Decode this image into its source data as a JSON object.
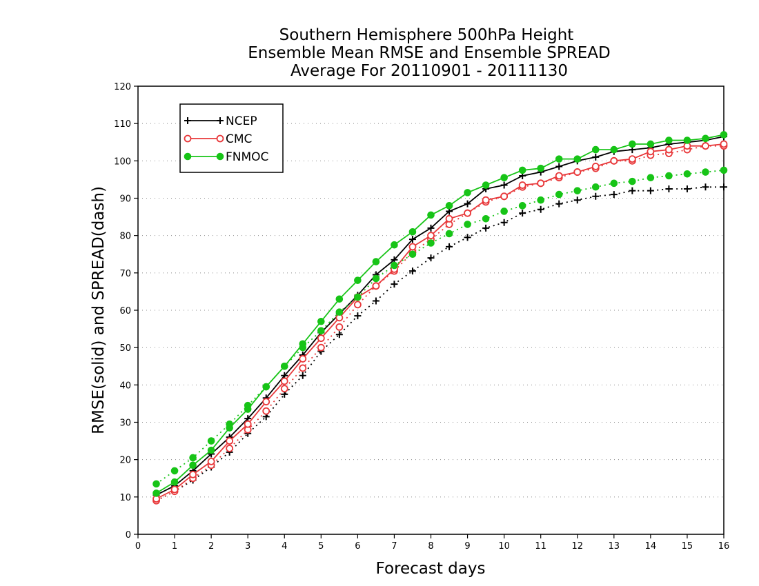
{
  "chart_data": {
    "type": "line",
    "title": [
      "Southern Hemisphere 500hPa Height",
      "Ensemble Mean RMSE and Ensemble SPREAD",
      "Average For 20110901 - 20111130"
    ],
    "xlabel": "Forecast days",
    "ylabel": "RMSE(solid) and SPREAD(dash)",
    "xlim": [
      0,
      16
    ],
    "ylim": [
      0,
      120
    ],
    "x_ticks": [
      "0",
      "1",
      "2",
      "3",
      "4",
      "5",
      "6",
      "7",
      "8",
      "9",
      "10",
      "11",
      "12",
      "13",
      "14",
      "15",
      "16"
    ],
    "y_ticks": [
      "0",
      "10",
      "20",
      "30",
      "40",
      "50",
      "60",
      "70",
      "80",
      "90",
      "100",
      "110",
      "120"
    ],
    "grid": "horizontal dotted",
    "legend_position": "top-left",
    "x": [
      0.5,
      1,
      1.5,
      2,
      2.5,
      3,
      3.5,
      4,
      4.5,
      5,
      5.5,
      6,
      6.5,
      7,
      7.5,
      8,
      8.5,
      9,
      9.5,
      10,
      10.5,
      11,
      11.5,
      12,
      12.5,
      13,
      13.5,
      14,
      14.5,
      15,
      15.5,
      16
    ],
    "series": [
      {
        "name": "NCEP",
        "color": "#000000",
        "marker": "plus",
        "rmse": [
          10.5,
          13.0,
          17.0,
          21.5,
          26.0,
          31.0,
          36.5,
          42.5,
          48.0,
          54.0,
          59.0,
          64.0,
          69.5,
          73.5,
          79.0,
          82.0,
          86.5,
          88.5,
          92.5,
          93.5,
          96.0,
          97.0,
          98.5,
          100.0,
          101.0,
          102.5,
          103.0,
          103.5,
          104.5,
          105.0,
          105.5,
          106.5
        ],
        "spread": [
          9.0,
          11.5,
          14.5,
          18.0,
          22.0,
          27.0,
          31.5,
          37.5,
          42.5,
          49.0,
          53.5,
          58.5,
          62.5,
          67.0,
          70.5,
          74.0,
          77.0,
          79.5,
          82.0,
          83.5,
          86.0,
          87.0,
          88.5,
          89.5,
          90.5,
          91.0,
          92.0,
          92.0,
          92.5,
          92.5,
          93.0,
          93.0
        ]
      },
      {
        "name": "CMC",
        "color": "#e8383a",
        "marker": "open-circle",
        "rmse": [
          9.5,
          12.0,
          16.0,
          19.5,
          25.0,
          29.5,
          35.5,
          41.0,
          47.0,
          52.5,
          58.0,
          63.5,
          66.5,
          71.0,
          77.0,
          80.0,
          84.5,
          86.0,
          89.5,
          90.5,
          93.5,
          94.0,
          96.0,
          97.0,
          98.5,
          100.0,
          100.5,
          102.5,
          103.0,
          104.0,
          104.0,
          104.5
        ],
        "spread": [
          9.0,
          11.5,
          15.0,
          18.5,
          23.0,
          28.0,
          33.0,
          39.0,
          44.5,
          50.0,
          55.5,
          61.5,
          66.5,
          70.5,
          75.5,
          79.0,
          83.0,
          86.0,
          89.0,
          90.5,
          93.0,
          94.0,
          95.5,
          97.0,
          98.0,
          100.0,
          100.0,
          101.5,
          102.0,
          103.0,
          104.0,
          104.0
        ]
      },
      {
        "name": "FNMOC",
        "color": "#17c417",
        "marker": "filled-circle",
        "rmse": [
          11.0,
          14.0,
          18.5,
          22.5,
          28.5,
          33.5,
          39.5,
          45.0,
          51.0,
          57.0,
          63.0,
          68.0,
          73.0,
          77.5,
          81.0,
          85.5,
          88.0,
          91.5,
          93.5,
          95.5,
          97.5,
          98.0,
          100.5,
          100.5,
          103.0,
          103.0,
          104.5,
          104.5,
          105.5,
          105.5,
          106.0,
          107.0
        ],
        "spread": [
          13.5,
          17.0,
          20.5,
          25.0,
          29.5,
          34.5,
          39.5,
          45.0,
          50.0,
          54.5,
          59.5,
          63.5,
          68.5,
          72.0,
          75.0,
          78.0,
          80.5,
          83.0,
          84.5,
          86.5,
          88.0,
          89.5,
          91.0,
          92.0,
          93.0,
          94.0,
          94.5,
          95.5,
          96.0,
          96.5,
          97.0,
          97.5
        ]
      }
    ]
  }
}
